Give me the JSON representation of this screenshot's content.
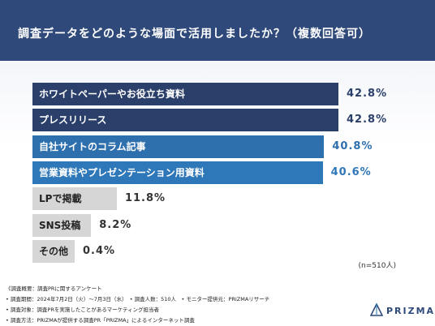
{
  "title": "調査データをどのような場面で活用しましたか？（複数回答可）",
  "chart_data": {
    "type": "bar",
    "orientation": "horizontal",
    "categories": [
      "ホワイトペーパーやお役立ち資料",
      "プレスリリース",
      "自社サイトのコラム記事",
      "営業資料やプレゼンテーション用資料",
      "LPで掲載",
      "SNS投稿",
      "その他"
    ],
    "values": [
      42.8,
      42.8,
      40.8,
      40.6,
      11.8,
      8.2,
      0.4
    ],
    "value_labels": [
      "42.8%",
      "42.8%",
      "40.8%",
      "40.6%",
      "11.8%",
      "8.2%",
      "0.4%"
    ],
    "bar_colors": [
      "#2b3f6b",
      "#2b3f6b",
      "#2e6fae",
      "#2e77b8",
      "#d6d6d6",
      "#d6d6d6",
      "#d6d6d6"
    ],
    "label_colors": [
      "#ffffff",
      "#ffffff",
      "#ffffff",
      "#ffffff",
      "#222222",
      "#222222",
      "#222222"
    ],
    "value_colors": [
      "#2b3f6b",
      "#2b3f6b",
      "#2e6fae",
      "#2e77b8",
      "#333333",
      "#333333",
      "#333333"
    ],
    "xlim": [
      0,
      42.8
    ],
    "grid": false
  },
  "note": "(n=510人)",
  "footer": {
    "lines": [
      "《調査概要：調査PRに関するアンケート",
      "• 調査期間：2024年7月2日（火）〜7月3日（水）　• 調査人数：510人　• モニター提供元：PRIZMAリサーチ",
      "• 調査対象：調査PRを実施したことがあるマーケティング担当者",
      "• 調査方法：PRIZMAが提供する調査PR「PRIZMA」によるインターネット調査"
    ]
  },
  "logo": {
    "text": "PRIZMA",
    "color": "#2f4a7a"
  }
}
